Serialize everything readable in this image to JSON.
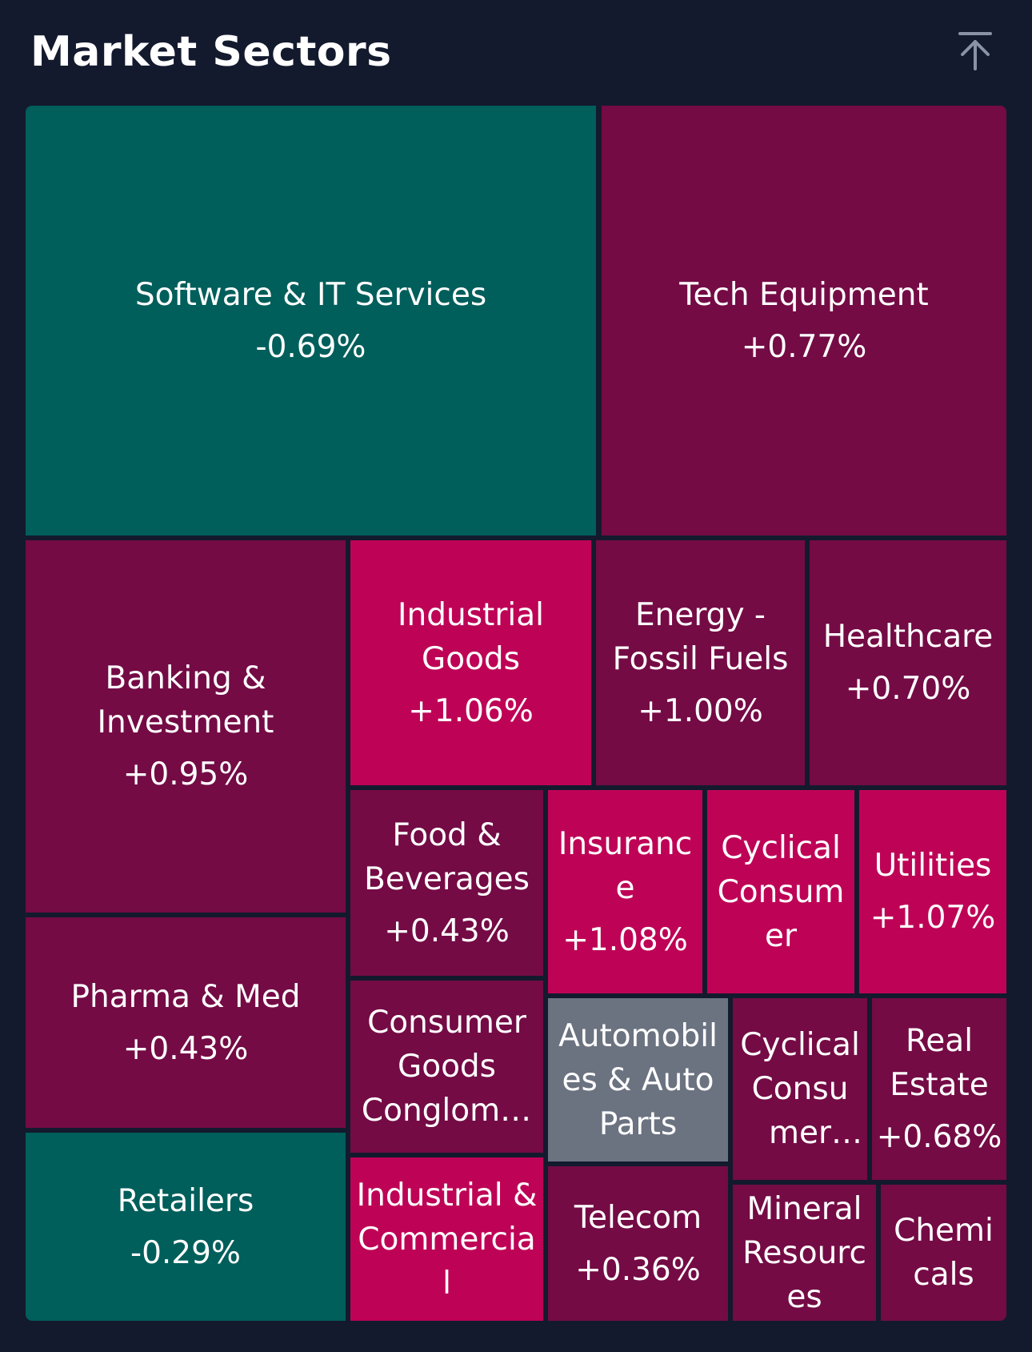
{
  "header": {
    "title": "Market Sectors",
    "scroll_top_icon": "arrow-up-to-line-icon"
  },
  "colors": {
    "background": "#131a2e",
    "positive": "#740b45",
    "positive_strong": "#be0356",
    "negative": "#005e5b",
    "neutral": "#6b7280"
  },
  "sectors": [
    {
      "name": "Software & IT Services",
      "change": "-0.69%"
    },
    {
      "name": "Tech Equipment",
      "change": "+0.77%"
    },
    {
      "name": "Banking & Investment",
      "change": "+0.95%"
    },
    {
      "name": "Industrial Goods",
      "change": "+1.06%"
    },
    {
      "name": "Energy - Fossil Fuels",
      "change": "+1.00%"
    },
    {
      "name": "Healthcare",
      "change": "+0.70%"
    },
    {
      "name": "Food & Beverages",
      "change": "+0.43%"
    },
    {
      "name": "Insurance",
      "change": "+1.08%"
    },
    {
      "name": "Cyclical Consumer",
      "change": ""
    },
    {
      "name": "Utilities",
      "change": "+1.07%"
    },
    {
      "name": "Pharma & Med",
      "change": "+0.43%"
    },
    {
      "name": "Consumer Goods Conglomerates",
      "change": ""
    },
    {
      "name": "Automobiles & Auto Parts",
      "change": ""
    },
    {
      "name": "Cyclical Consumer Products",
      "change": ""
    },
    {
      "name": "Real Estate",
      "change": "+0.68%"
    },
    {
      "name": "Retailers",
      "change": "-0.29%"
    },
    {
      "name": "Industrial & Commercial",
      "change": ""
    },
    {
      "name": "Telecom",
      "change": "+0.36%"
    },
    {
      "name": "Mineral Resources",
      "change": ""
    },
    {
      "name": "Chemicals",
      "change": ""
    }
  ]
}
